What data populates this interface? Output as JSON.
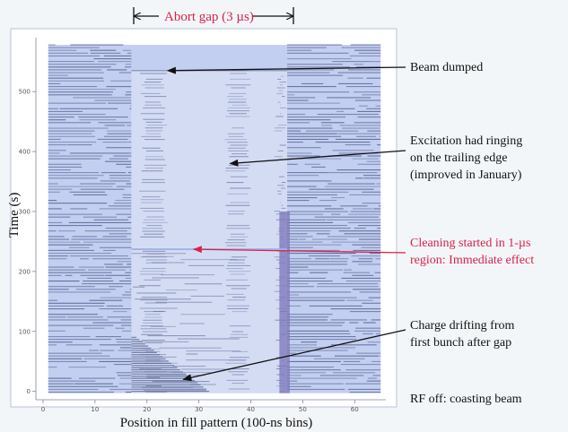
{
  "chart_data": {
    "type": "heatmap",
    "xlabel": "Position in fill pattern (100-ns bins)",
    "ylabel": "Time (s)",
    "xlim": [
      0,
      66
    ],
    "ylim": [
      -5,
      590
    ],
    "x_ticks": [
      0,
      10,
      20,
      30,
      40,
      50,
      60
    ],
    "y_ticks": [
      0,
      100,
      200,
      300,
      400,
      500
    ],
    "x_tick_labels": [
      "0",
      "10",
      "20",
      "30",
      "40",
      "50",
      "60"
    ],
    "y_tick_labels": [
      "0",
      "100",
      "200",
      "300",
      "400",
      "500"
    ],
    "abort_gap": {
      "label": "Abort gap (3 µs)",
      "x_start": 17,
      "x_end": 47
    },
    "annotations": [
      {
        "text": [
          "Beam dumped"
        ],
        "color": "#111111",
        "points_to": [
          24,
          535
        ]
      },
      {
        "text": [
          "Excitation had ringing",
          "on the trailing edge",
          "(improved in January)"
        ],
        "color": "#111111",
        "points_to": [
          36,
          380
        ]
      },
      {
        "text": [
          "Cleaning started in 1-µs",
          "region: Immediate effect"
        ],
        "color": "#d9214b",
        "points_to": [
          29,
          237
        ]
      },
      {
        "text": [
          "Charge drifting from",
          "first bunch after gap"
        ],
        "color": "#111111",
        "points_to": [
          27,
          20
        ]
      }
    ],
    "footnote": "RF off:  coasting beam"
  },
  "colors": {
    "background": "#f3f6f8",
    "plot_base": "#c3cff0",
    "streak": "#5f6c9a",
    "gap_region": "#d4dcf4",
    "cleaning_line": "#a3b2e6",
    "trailing_edge": "#7b74b8"
  }
}
